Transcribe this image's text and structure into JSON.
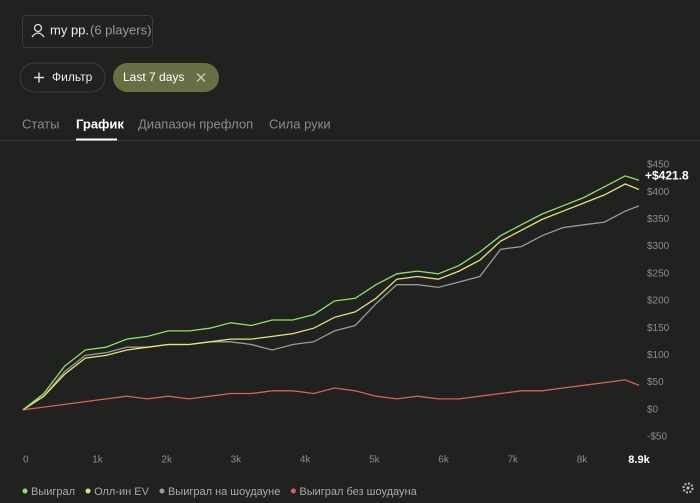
{
  "header": {
    "group": "my pp.",
    "players": "(6 players)",
    "filter_button": "Фильтр",
    "date_chip": "Last 7 days"
  },
  "tabs": [
    "Статы",
    "График",
    "Диапазон префлоп",
    "Сила руки"
  ],
  "chart_data": {
    "type": "line",
    "x": [
      0,
      300,
      600,
      900,
      1200,
      1500,
      1800,
      2100,
      2400,
      2700,
      3000,
      3300,
      3600,
      3900,
      4200,
      4500,
      4800,
      5100,
      5400,
      5700,
      6000,
      6300,
      6600,
      6900,
      7200,
      7500,
      7800,
      8100,
      8400,
      8700,
      8900
    ],
    "series": [
      {
        "name": "Выиграл",
        "color": "#8fe06c",
        "values": [
          0,
          30,
          80,
          110,
          115,
          130,
          135,
          145,
          145,
          150,
          160,
          155,
          165,
          165,
          175,
          200,
          205,
          230,
          250,
          255,
          250,
          265,
          290,
          320,
          340,
          360,
          375,
          390,
          410,
          430,
          421.8
        ]
      },
      {
        "name": "Олл-ин EV",
        "color": "#e8e27c",
        "values": [
          0,
          25,
          65,
          95,
          100,
          110,
          115,
          120,
          120,
          125,
          130,
          130,
          135,
          140,
          150,
          170,
          180,
          205,
          240,
          245,
          240,
          255,
          275,
          310,
          330,
          350,
          365,
          380,
          395,
          415,
          405
        ]
      },
      {
        "name": "Выиграл на шоудауне",
        "color": "#9a9a9a",
        "values": [
          0,
          25,
          70,
          100,
          105,
          115,
          115,
          120,
          120,
          125,
          125,
          120,
          110,
          120,
          125,
          145,
          155,
          195,
          230,
          230,
          225,
          235,
          245,
          295,
          300,
          320,
          335,
          340,
          345,
          365,
          375
        ]
      },
      {
        "name": "Выиграл без шоудауна",
        "color": "#d8605a",
        "values": [
          0,
          5,
          10,
          15,
          20,
          25,
          20,
          25,
          20,
          25,
          30,
          30,
          35,
          35,
          30,
          40,
          35,
          25,
          20,
          25,
          20,
          20,
          25,
          30,
          35,
          35,
          40,
          45,
          50,
          55,
          45
        ]
      }
    ],
    "annotation": "+$421.8",
    "xlim": [
      0,
      8900
    ],
    "xticks": [
      0,
      {
        "value": 1000,
        "label": "1k"
      },
      {
        "value": 2000,
        "label": "2k"
      },
      {
        "value": 3000,
        "label": "3k"
      },
      {
        "value": 4000,
        "label": "4k"
      },
      {
        "value": 5000,
        "label": "5k"
      },
      {
        "value": 6000,
        "label": "6k"
      },
      {
        "value": 7000,
        "label": "7k"
      },
      {
        "value": 8000,
        "label": "8k"
      },
      {
        "value": 8900,
        "label": "8.9k"
      }
    ],
    "ylim": [
      -50,
      450
    ],
    "yticks": [
      {
        "value": -50,
        "label": "-$50"
      },
      {
        "value": 0,
        "label": "$0"
      },
      {
        "value": 50,
        "label": "$50"
      },
      {
        "value": 100,
        "label": "$100"
      },
      {
        "value": 150,
        "label": "$150"
      },
      {
        "value": 200,
        "label": "$200"
      },
      {
        "value": 250,
        "label": "$250"
      },
      {
        "value": 300,
        "label": "$300"
      },
      {
        "value": 350,
        "label": "$350"
      },
      {
        "value": 400,
        "label": "$400"
      },
      {
        "value": 450,
        "label": "$450"
      }
    ],
    "grid": false
  }
}
